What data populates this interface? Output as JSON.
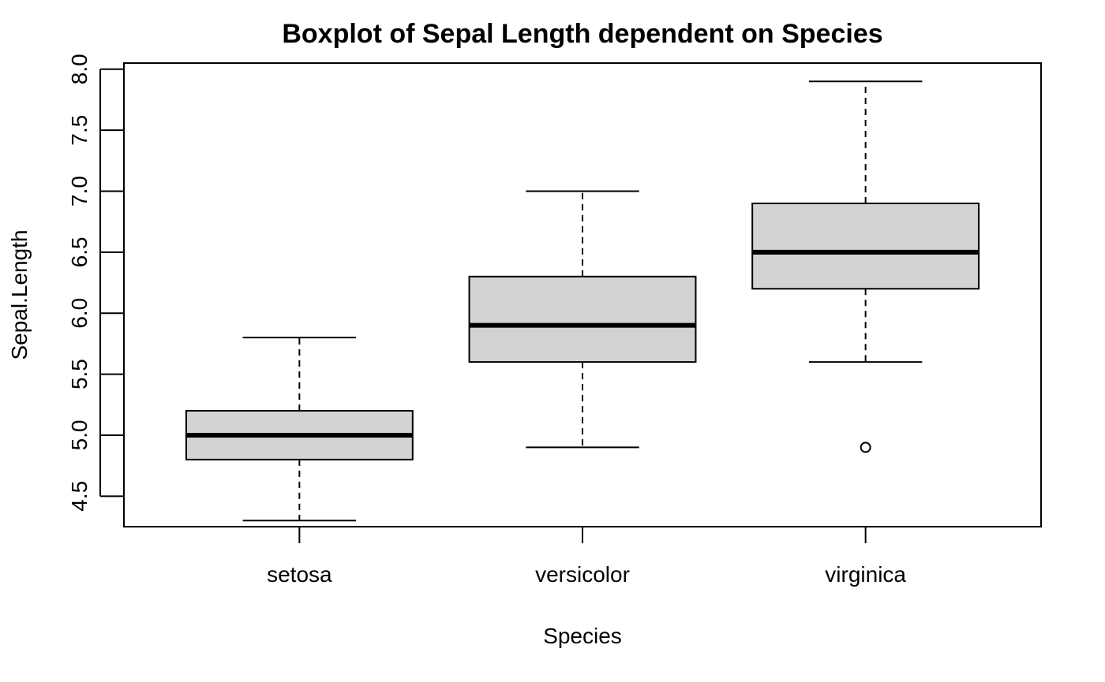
{
  "chart_data": {
    "type": "boxplot",
    "title": "Boxplot of Sepal Length dependent on Species",
    "xlabel": "Species",
    "ylabel": "Sepal.Length",
    "categories": [
      "setosa",
      "versicolor",
      "virginica"
    ],
    "boxes": [
      {
        "category": "setosa",
        "whisker_low": 4.3,
        "q1": 4.8,
        "median": 5.0,
        "q3": 5.2,
        "whisker_high": 5.8,
        "outliers": []
      },
      {
        "category": "versicolor",
        "whisker_low": 4.9,
        "q1": 5.6,
        "median": 5.9,
        "q3": 6.3,
        "whisker_high": 7.0,
        "outliers": []
      },
      {
        "category": "virginica",
        "whisker_low": 5.6,
        "q1": 6.2,
        "median": 6.5,
        "q3": 6.9,
        "whisker_high": 7.9,
        "outliers": [
          4.9
        ]
      }
    ],
    "ylim": [
      4.25,
      8.05
    ],
    "yticks": [
      "4.5",
      "5.0",
      "5.5",
      "6.0",
      "6.5",
      "7.0",
      "7.5",
      "8.0"
    ],
    "box_fill": "#d3d3d3",
    "line_color": "#000000",
    "grid": false,
    "legend": "none"
  }
}
